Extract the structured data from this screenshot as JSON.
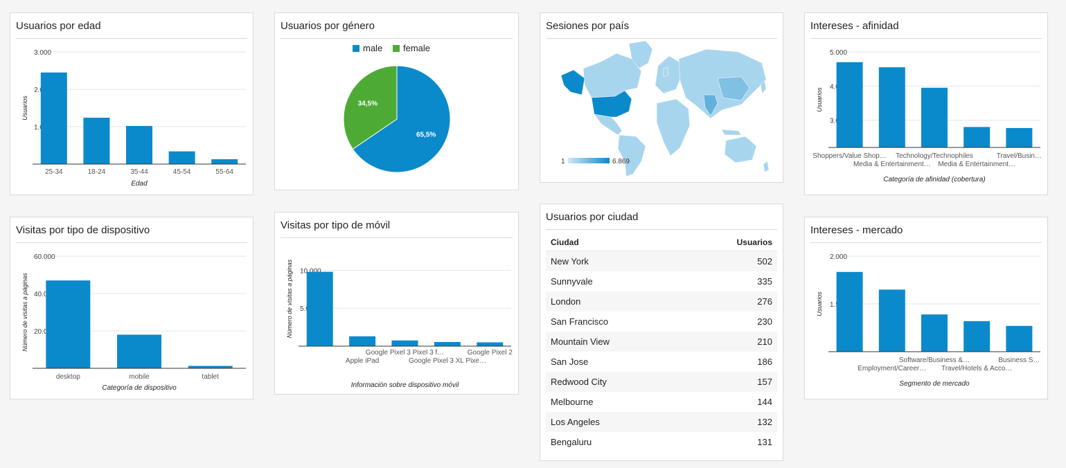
{
  "accent": "#0b8acb",
  "colors": {
    "male": "#0b8acb",
    "female": "#4dab35",
    "grid": "#e6e6e6",
    "axis": "#333333"
  },
  "cards": {
    "edad": {
      "title": "Usuarios por edad"
    },
    "genero": {
      "title": "Usuarios por género"
    },
    "pais": {
      "title": "Sesiones por país"
    },
    "afinidad": {
      "title": "Intereses - afinidad"
    },
    "dispositivo": {
      "title": "Visitas por tipo de dispositivo"
    },
    "movil": {
      "title": "Visitas por tipo de móvil"
    },
    "ciudad": {
      "title": "Usuarios por ciudad"
    },
    "mercado": {
      "title": "Intereses - mercado"
    }
  },
  "map": {
    "legend_min": "1",
    "legend_max": "6.869",
    "highlight_country": "United States"
  },
  "city_table": {
    "headers": {
      "city": "Ciudad",
      "users": "Usuarios"
    },
    "rows": [
      {
        "city": "New York",
        "users": "502"
      },
      {
        "city": "Sunnyvale",
        "users": "335"
      },
      {
        "city": "London",
        "users": "276"
      },
      {
        "city": "San Francisco",
        "users": "230"
      },
      {
        "city": "Mountain View",
        "users": "210"
      },
      {
        "city": "San Jose",
        "users": "186"
      },
      {
        "city": "Redwood City",
        "users": "157"
      },
      {
        "city": "Melbourne",
        "users": "144"
      },
      {
        "city": "Los Angeles",
        "users": "132"
      },
      {
        "city": "Bengaluru",
        "users": "131"
      }
    ]
  },
  "chart_data": [
    {
      "id": "edad",
      "type": "bar",
      "categories": [
        "25-34",
        "18-24",
        "35-44",
        "45-54",
        "55-64"
      ],
      "values": [
        2450,
        1240,
        1020,
        340,
        130
      ],
      "xlabel": "Edad",
      "ylabel": "Usuarios",
      "ylim": [
        0,
        3000
      ],
      "yticks": [
        "3.000",
        "2.000",
        "1.000"
      ],
      "ytick_values": [
        3000,
        2000,
        1000
      ],
      "grid": true
    },
    {
      "id": "genero",
      "type": "pie",
      "categories": [
        "male",
        "female"
      ],
      "values": [
        65.5,
        34.5
      ],
      "labels": [
        "65,5%",
        "34,5%"
      ],
      "legend": "top"
    },
    {
      "id": "afinidad",
      "type": "bar",
      "categories": [
        "Shoppers/Value Shop…",
        "Media & Entertainment…",
        "Technology/Technophiles",
        "Media & Entertainment…",
        "Travel/Busin…"
      ],
      "values": [
        4700,
        4550,
        3950,
        2800,
        2770
      ],
      "xlabel": "Categoría de afinidad (cobertura)",
      "ylabel": "Usuarios",
      "ylim": [
        2200,
        5000
      ],
      "yticks": [
        "5.000",
        "4.000",
        "3.000"
      ],
      "ytick_values": [
        5000,
        4000,
        3000
      ],
      "grid": true
    },
    {
      "id": "dispositivo",
      "type": "bar",
      "categories": [
        "desktop",
        "mobile",
        "tablet"
      ],
      "values": [
        47000,
        18000,
        1300
      ],
      "xlabel": "Categoría de dispositivo",
      "ylabel": "Número de visitas a páginas",
      "ylim": [
        0,
        60000
      ],
      "yticks": [
        "60.000",
        "40.000",
        "20.000"
      ],
      "ytick_values": [
        60000,
        40000,
        20000
      ],
      "grid": true
    },
    {
      "id": "movil",
      "type": "bar",
      "categories": [
        "",
        "Apple iPad",
        "Google Pixel 3 Pixel 3 f…",
        "Google Pixel 3 XL Pixe…",
        "Google Pixel 2"
      ],
      "values": [
        9800,
        1300,
        750,
        550,
        500
      ],
      "xlabel": "Información sobre dispositivo móvil",
      "ylabel": "Número de visitas a páginas",
      "ylim": [
        0,
        12500
      ],
      "yticks": [
        "10.000",
        "5.000"
      ],
      "ytick_values": [
        10000,
        5000
      ],
      "grid": true
    },
    {
      "id": "mercado",
      "type": "bar",
      "categories": [
        "",
        "Employment/Career…",
        "Software/Business &…",
        "Travel/Hotels & Acco…",
        "Business S…"
      ],
      "values": [
        1835,
        1650,
        1390,
        1320,
        1270
      ],
      "xlabel": "Segmento de mercado",
      "ylabel": "Usuarios",
      "ylim": [
        1000,
        2000
      ],
      "yticks": [
        "2.000",
        "1.500"
      ],
      "ytick_values": [
        2000,
        1500
      ],
      "grid": true
    }
  ]
}
